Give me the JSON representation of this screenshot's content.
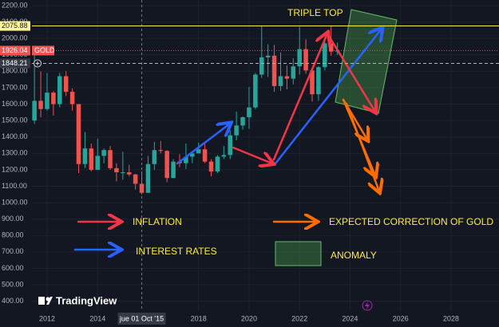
{
  "chart_data": {
    "type": "candlestick",
    "x": [
      2011.5,
      2011.75,
      2012.0,
      2012.25,
      2012.5,
      2012.75,
      2013.0,
      2013.25,
      2013.5,
      2013.75,
      2014.0,
      2014.25,
      2014.5,
      2014.75,
      2015.0,
      2015.25,
      2015.5,
      2015.75,
      2016.0,
      2016.25,
      2016.5,
      2016.75,
      2017.0,
      2017.25,
      2017.5,
      2017.75,
      2018.0,
      2018.25,
      2018.5,
      2018.75,
      2019.0,
      2019.25,
      2019.5,
      2019.75,
      2020.0,
      2020.25,
      2020.5,
      2020.75,
      2021.0,
      2021.25,
      2021.5,
      2021.75,
      2022.0,
      2022.25,
      2022.5,
      2022.75,
      2023.0,
      2023.25,
      2023.5
    ],
    "open": [
      1500,
      1620,
      1570,
      1670,
      1600,
      1770,
      1675,
      1600,
      1235,
      1330,
      1200,
      1285,
      1320,
      1210,
      1185,
      1185,
      1172,
      1115,
      1060,
      1235,
      1320,
      1315,
      1150,
      1250,
      1240,
      1280,
      1300,
      1325,
      1250,
      1190,
      1280,
      1290,
      1410,
      1470,
      1520,
      1580,
      1780,
      1885,
      1895,
      1710,
      1770,
      1755,
      1830,
      1935,
      1805,
      1660,
      1825,
      1970,
      1920
    ],
    "high": [
      1920,
      1800,
      1790,
      1680,
      1790,
      1800,
      1695,
      1600,
      1430,
      1360,
      1390,
      1330,
      1345,
      1240,
      1310,
      1230,
      1175,
      1190,
      1285,
      1370,
      1375,
      1320,
      1265,
      1295,
      1360,
      1310,
      1365,
      1365,
      1265,
      1290,
      1345,
      1440,
      1555,
      1525,
      1705,
      1790,
      2075,
      1965,
      1960,
      1915,
      1835,
      1880,
      2070,
      1995,
      1815,
      1830,
      2010,
      2080,
      1975
    ],
    "low": [
      1480,
      1520,
      1560,
      1530,
      1580,
      1650,
      1560,
      1180,
      1210,
      1190,
      1200,
      1240,
      1200,
      1130,
      1140,
      1160,
      1080,
      1050,
      1060,
      1200,
      1300,
      1125,
      1150,
      1215,
      1205,
      1240,
      1300,
      1240,
      1160,
      1180,
      1265,
      1265,
      1380,
      1445,
      1450,
      1570,
      1760,
      1765,
      1675,
      1680,
      1690,
      1720,
      1780,
      1785,
      1615,
      1620,
      1805,
      1895,
      1900
    ],
    "close": [
      1620,
      1570,
      1670,
      1600,
      1770,
      1675,
      1600,
      1235,
      1330,
      1200,
      1285,
      1320,
      1210,
      1185,
      1185,
      1172,
      1115,
      1060,
      1235,
      1320,
      1315,
      1150,
      1250,
      1240,
      1280,
      1300,
      1325,
      1250,
      1190,
      1280,
      1290,
      1410,
      1470,
      1520,
      1580,
      1780,
      1885,
      1895,
      1710,
      1770,
      1755,
      1830,
      1935,
      1805,
      1660,
      1825,
      1970,
      1920,
      1926.04
    ],
    "up_color": "#26a69a",
    "down_color": "#ef5350",
    "xlim": [
      2011.4,
      2029.9
    ],
    "xticks": [
      2012,
      2014,
      2018,
      2020,
      2022,
      2024,
      2026,
      2028
    ],
    "ylim": [
      340,
      2234
    ],
    "yticks": [
      {
        "value": 400,
        "label": "400.00"
      },
      {
        "value": 500,
        "label": "500.00"
      },
      {
        "value": 600,
        "label": "600.00"
      },
      {
        "value": 700,
        "label": "700.00"
      },
      {
        "value": 800,
        "label": "800.00"
      },
      {
        "value": 900,
        "label": "900.00"
      },
      {
        "value": 1000,
        "label": "1000.00"
      },
      {
        "value": 1100,
        "label": "1100.00"
      },
      {
        "value": 1200,
        "label": "1200.00"
      },
      {
        "value": 1300,
        "label": "1300.00"
      },
      {
        "value": 1400,
        "label": "1400.00"
      },
      {
        "value": 1500,
        "label": "1500.00"
      },
      {
        "value": 1600,
        "label": "1600.00"
      },
      {
        "value": 1700,
        "label": "1700.00"
      },
      {
        "value": 1800,
        "label": "1800.00"
      },
      {
        "value": 1900,
        "label": "1900.00"
      },
      {
        "value": 2000,
        "label": "2000.00"
      },
      {
        "value": 2100,
        "label": "2100.00"
      },
      {
        "value": 2200,
        "label": "2200.00"
      }
    ],
    "grid": true,
    "price_lines": [
      {
        "value": 2075.88,
        "color": "#ffeb3b",
        "label_bg": "#fff59d",
        "label_color": "#131722"
      },
      {
        "value": 1926.04,
        "color": "#ef5350",
        "label_bg": "#ef5350",
        "label_color": "#ffffff",
        "tag": "GOLD"
      },
      {
        "value": 1848.21,
        "color": "#b2b5be",
        "label_bg": "#363a45",
        "label_color": "#ffffff"
      }
    ],
    "crosshair": {
      "x": 2015.75,
      "label": "jue 01 Oct '15"
    },
    "annotations": {
      "triple_top": "TRIPLE TOP",
      "inflation": "INFLATION",
      "interest_rates": "INTEREST RATES",
      "correction": "EXPECTED CORRECTION OF GOLD",
      "anomaly": "ANOMALY"
    },
    "brand": "TradingView"
  }
}
